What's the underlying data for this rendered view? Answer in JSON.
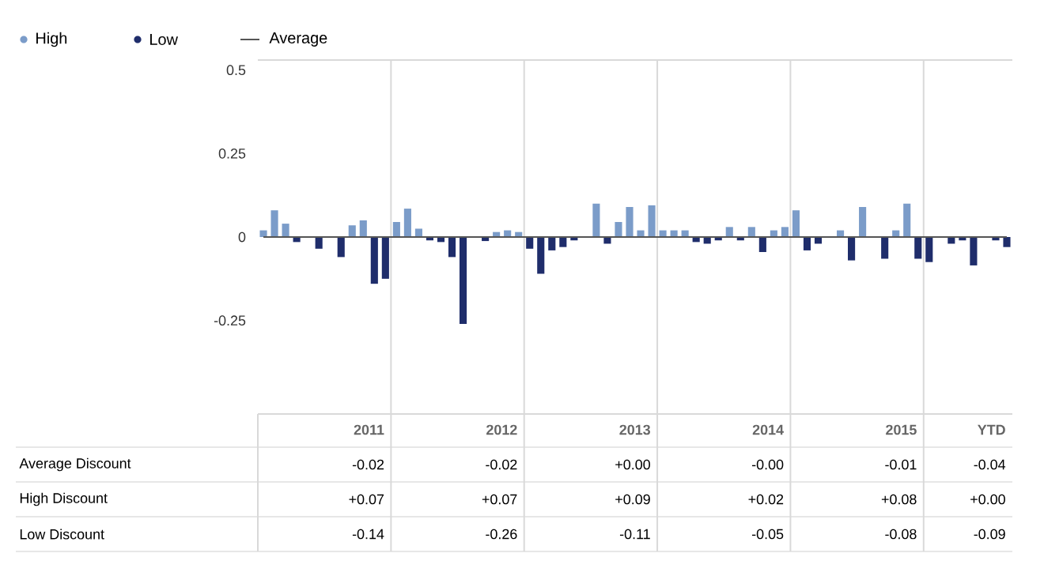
{
  "chart_data": {
    "type": "bar",
    "categories": [
      null,
      null,
      null,
      null,
      null,
      null,
      null,
      null,
      null,
      null,
      null,
      null,
      null,
      null,
      null,
      null,
      null,
      null,
      null,
      null,
      null,
      null,
      null,
      null,
      null,
      null,
      null,
      null,
      null,
      null,
      null,
      null,
      null,
      null,
      null,
      null,
      null,
      null,
      null,
      null,
      null,
      null,
      null,
      null,
      null,
      null,
      null,
      null,
      null,
      null,
      null,
      null,
      null,
      null,
      null,
      null,
      null,
      null,
      null,
      null,
      null,
      null,
      null,
      null,
      null,
      null,
      null,
      null
    ],
    "series": [
      {
        "name": "High",
        "color": "#7b9cc9",
        "values": [
          0.02,
          0.08,
          0.04,
          null,
          null,
          null,
          null,
          null,
          0.035,
          0.05,
          null,
          null,
          0.045,
          0.085,
          0.025,
          null,
          null,
          null,
          null,
          null,
          null,
          0.015,
          0.02,
          0.015,
          null,
          null,
          null,
          null,
          null,
          null,
          0.1,
          null,
          0.045,
          0.09,
          0.02,
          0.095,
          0.02,
          0.02,
          0.02,
          null,
          null,
          null,
          0.03,
          null,
          0.03,
          null,
          0.02,
          0.03,
          0.08,
          null,
          null,
          null,
          0.02,
          null,
          0.09,
          null,
          null,
          0.02,
          0.1,
          null,
          null,
          null,
          null,
          null,
          null,
          null,
          null,
          null
        ]
      },
      {
        "name": "Low",
        "color": "#1f2d6b",
        "values": [
          null,
          null,
          null,
          -0.015,
          null,
          -0.035,
          null,
          -0.06,
          null,
          null,
          -0.14,
          -0.125,
          null,
          null,
          null,
          -0.01,
          -0.015,
          -0.06,
          -0.26,
          null,
          -0.012,
          null,
          null,
          null,
          -0.035,
          -0.11,
          -0.04,
          -0.03,
          -0.01,
          null,
          null,
          -0.02,
          null,
          null,
          null,
          null,
          null,
          null,
          null,
          -0.015,
          -0.02,
          -0.01,
          null,
          -0.01,
          null,
          -0.045,
          null,
          null,
          null,
          -0.04,
          -0.02,
          null,
          null,
          -0.07,
          null,
          null,
          -0.065,
          null,
          null,
          -0.065,
          -0.075,
          null,
          -0.02,
          -0.01,
          -0.085,
          null,
          -0.01,
          -0.03
        ]
      },
      {
        "name": "Average",
        "type": "line",
        "color": "#555555",
        "values": [
          0,
          0,
          0,
          0,
          0,
          0,
          0,
          0,
          0,
          0,
          0,
          0,
          0,
          0,
          0,
          0,
          0,
          0,
          0,
          0,
          0,
          0,
          0,
          0,
          0,
          0,
          0,
          0,
          0,
          0,
          0,
          0,
          0,
          0,
          0,
          0,
          0,
          0,
          0,
          0,
          0,
          0,
          0,
          0,
          0,
          0,
          0,
          0,
          0,
          0,
          0,
          0,
          0,
          0,
          0,
          0,
          0,
          0,
          0,
          0,
          0,
          0,
          0,
          0,
          0,
          0,
          0,
          0
        ]
      }
    ],
    "ylim": [
      -0.53,
      0.53
    ],
    "yticks": [
      0.5,
      0.25,
      0,
      -0.25
    ],
    "grid": "x",
    "legend": "top left",
    "annotations": [
      "2011",
      "2012",
      "2013",
      "2014",
      "2015",
      "YTD",
      "Average Discount",
      "-0.02",
      "-0.02",
      "+0.00",
      "-0.00",
      "-0.01",
      "-0.04",
      "High Discount",
      "+0.07",
      "+0.07",
      "+0.09",
      "+0.02",
      "+0.08",
      "+0.00",
      "Low Discount",
      "-0.14",
      "-0.26",
      "-0.11",
      "-0.05",
      "-0.08",
      "-0.09"
    ]
  }
}
